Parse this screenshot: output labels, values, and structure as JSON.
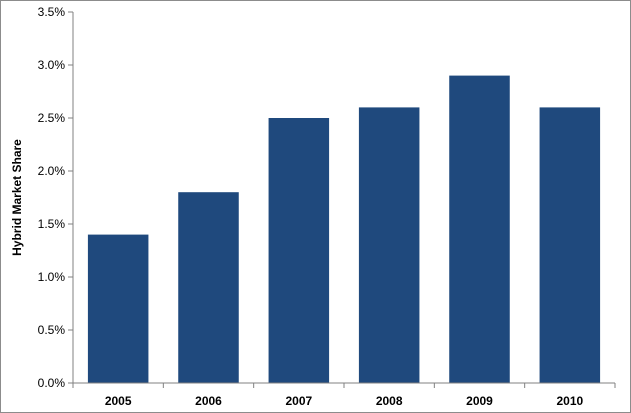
{
  "chart_data": {
    "type": "bar",
    "title": "",
    "xlabel": "",
    "ylabel": "Hybrid Market Share",
    "categories": [
      "2005",
      "2006",
      "2007",
      "2008",
      "2009",
      "2010"
    ],
    "series": [
      {
        "values": [
          1.4,
          1.8,
          2.5,
          2.6,
          2.9,
          2.6
        ]
      }
    ],
    "ylim": [
      0,
      3.5
    ],
    "yticks": [
      0.0,
      0.5,
      1.0,
      1.5,
      2.0,
      2.5,
      3.0,
      3.5
    ],
    "ytick_labels": [
      "0.0%",
      "0.5%",
      "1.0%",
      "1.5%",
      "2.0%",
      "2.5%",
      "3.0%",
      "3.5%"
    ],
    "grid": false,
    "legend": "none",
    "colors": {
      "bar": "#1F497D",
      "axis": "#808080",
      "frame": "#8c8c8c"
    }
  }
}
